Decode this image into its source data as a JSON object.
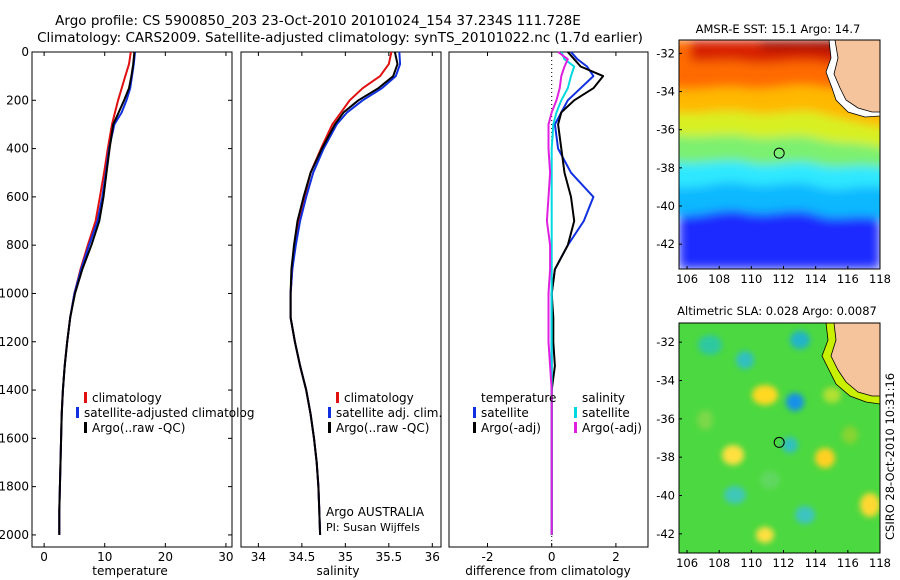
{
  "title": {
    "line1": "Argo profile: CS 5900850_203 23-Oct-2010 20101024_154 37.234S 111.728E",
    "line2": "Climatology: CARS2009. Satellite-adjusted climatology: synTS_20101022.nc (1.7d earlier)"
  },
  "credit": "CSIRO 28-Oct-2010 10:31:16",
  "colors": {
    "clim": "#e01010",
    "sat": "#1030e0",
    "argo": "#000000",
    "sal_sat": "#00d8e0",
    "sal_argo": "#e020e0"
  },
  "chart_data": [
    {
      "id": "temperature",
      "type": "line",
      "xlabel": "temperature",
      "ylabel": "",
      "xlim": [
        -2,
        31
      ],
      "ylim": [
        2050,
        0
      ],
      "xticks": [
        "0",
        "10",
        "20",
        "30"
      ],
      "xtick_values": [
        0,
        10,
        20,
        30
      ],
      "yticks": [
        "0",
        "200",
        "400",
        "600",
        "800",
        "1000",
        "1200",
        "1400",
        "1600",
        "1800",
        "2000"
      ],
      "ytick_values": [
        0,
        200,
        400,
        600,
        800,
        1000,
        1200,
        1400,
        1600,
        1800,
        2000
      ],
      "legend": [
        "climatology",
        "satellite-adjusted climatolog",
        "Argo(..raw -QC)"
      ],
      "depth": [
        0,
        50,
        100,
        150,
        200,
        250,
        300,
        400,
        500,
        600,
        700,
        800,
        900,
        1000,
        1100,
        1200,
        1300,
        1400,
        1500,
        1600,
        1700,
        1800,
        1900,
        2000
      ],
      "series": [
        {
          "name": "climatology",
          "color": "clim",
          "values": [
            14.3,
            14.0,
            13.4,
            12.8,
            12.2,
            11.7,
            11.2,
            10.5,
            9.9,
            9.2,
            8.5,
            7.2,
            6.0,
            5.0,
            4.3,
            3.8,
            3.4,
            3.1,
            2.9,
            2.8,
            2.7,
            2.6,
            2.5,
            2.5
          ]
        },
        {
          "name": "satellite-adjusted climatolog",
          "color": "sat",
          "values": [
            15.0,
            14.8,
            14.5,
            14.2,
            13.6,
            12.8,
            11.6,
            10.7,
            10.2,
            9.6,
            8.8,
            7.4,
            6.1,
            5.0,
            4.3,
            3.8,
            3.4,
            3.1,
            2.9,
            2.8,
            2.7,
            2.6,
            2.5,
            2.5
          ]
        },
        {
          "name": "Argo(..raw -QC)",
          "color": "argo",
          "values": [
            14.9,
            14.7,
            14.4,
            14.0,
            13.2,
            12.3,
            11.4,
            10.8,
            10.3,
            9.8,
            9.1,
            7.8,
            6.3,
            5.1,
            4.3,
            3.8,
            3.4,
            3.1,
            2.9,
            2.8,
            2.7,
            2.6,
            2.5,
            2.5
          ]
        }
      ]
    },
    {
      "id": "salinity",
      "type": "line",
      "xlabel": "salinity",
      "ylabel": "",
      "xlim": [
        33.8,
        36.1
      ],
      "ylim": [
        2050,
        0
      ],
      "xticks": [
        "34",
        "34.5",
        "35",
        "35.5",
        "36"
      ],
      "xtick_values": [
        34,
        34.5,
        35,
        35.5,
        36
      ],
      "legend": [
        "climatology",
        "satellite adj. clim.",
        "Argo(..raw -QC)"
      ],
      "annotation": [
        "Argo AUSTRALIA",
        "PI: Susan Wijffels"
      ],
      "depth": [
        0,
        50,
        100,
        150,
        200,
        250,
        300,
        400,
        500,
        600,
        700,
        800,
        900,
        1000,
        1100,
        1200,
        1300,
        1400,
        1500,
        1600,
        1700,
        1800,
        1900,
        2000
      ],
      "series": [
        {
          "name": "climatology",
          "color": "clim",
          "values": [
            35.53,
            35.5,
            35.4,
            35.2,
            35.05,
            34.95,
            34.85,
            34.72,
            34.6,
            34.53,
            34.47,
            34.42,
            34.39,
            34.37,
            34.37,
            34.42,
            34.48,
            34.55,
            34.6,
            34.64,
            34.67,
            34.69,
            34.7,
            34.71
          ]
        },
        {
          "name": "satellite adj. clim.",
          "color": "sat",
          "values": [
            35.62,
            35.63,
            35.58,
            35.42,
            35.2,
            35.02,
            34.9,
            34.75,
            34.63,
            34.55,
            34.48,
            34.43,
            34.39,
            34.37,
            34.37,
            34.42,
            34.48,
            34.55,
            34.6,
            34.64,
            34.67,
            34.69,
            34.7,
            34.71
          ]
        },
        {
          "name": "Argo(..raw -QC)",
          "color": "argo",
          "values": [
            35.57,
            35.6,
            35.55,
            35.38,
            35.15,
            34.98,
            34.88,
            34.73,
            34.6,
            34.52,
            34.45,
            34.41,
            34.38,
            34.37,
            34.37,
            34.42,
            34.48,
            34.55,
            34.6,
            34.64,
            34.67,
            34.69,
            34.7,
            34.71
          ]
        }
      ]
    },
    {
      "id": "difference",
      "type": "line",
      "xlabel": "difference from climatology",
      "ylabel": "",
      "xlim": [
        -3.2,
        3.0
      ],
      "ylim": [
        2050,
        0
      ],
      "xticks": [
        "-2",
        "0",
        "2"
      ],
      "xtick_values": [
        -2,
        0,
        2
      ],
      "legend_left_title": "temperature",
      "legend_left": [
        "satellite",
        "Argo(-adj)"
      ],
      "legend_right_title": "salinity",
      "legend_right": [
        "satellite",
        "Argo(-adj)"
      ],
      "depth": [
        0,
        30,
        60,
        100,
        150,
        200,
        250,
        300,
        400,
        500,
        600,
        700,
        800,
        900,
        1000,
        1100,
        1200,
        1300,
        1400,
        1500,
        1600,
        1700,
        1800,
        1900,
        2000
      ],
      "series": [
        {
          "name": "temperature satellite",
          "color": "sat",
          "values": [
            0.6,
            0.8,
            1.1,
            1.3,
            0.9,
            0.5,
            0.3,
            0.1,
            0.2,
            0.6,
            1.3,
            1.0,
            0.5,
            0.1,
            0.0,
            0.0,
            0.0,
            0.0,
            0.0,
            0.0,
            0.0,
            0.0,
            0.0,
            0.0,
            0.0
          ]
        },
        {
          "name": "temperature Argo(-adj)",
          "color": "argo",
          "values": [
            0.5,
            0.7,
            0.9,
            1.6,
            1.3,
            0.7,
            0.3,
            0.2,
            0.3,
            0.4,
            0.6,
            0.7,
            0.5,
            0.1,
            0.0,
            0.05,
            0.05,
            0.1,
            0.0,
            0.0,
            0.0,
            0.0,
            0.0,
            0.0,
            0.0
          ]
        },
        {
          "name": "salinity satellite",
          "color": "sal_sat",
          "values": [
            0.3,
            0.4,
            0.7,
            0.6,
            0.5,
            0.3,
            0.15,
            0.05,
            0.0,
            0.0,
            0.0,
            0.0,
            0.0,
            0.0,
            0.0,
            0.0,
            0.0,
            0.0,
            0.0,
            0.0,
            0.0,
            0.0,
            0.0,
            0.0,
            0.0
          ]
        },
        {
          "name": "salinity Argo(-adj)",
          "color": "sal_argo",
          "values": [
            0.2,
            0.5,
            0.4,
            0.3,
            0.25,
            0.15,
            0.0,
            -0.1,
            -0.1,
            -0.05,
            -0.1,
            -0.15,
            -0.05,
            -0.05,
            -0.1,
            -0.1,
            -0.1,
            -0.05,
            0.0,
            0.0,
            0.0,
            0.0,
            0.0,
            0.0,
            0.0
          ]
        }
      ]
    },
    {
      "id": "sst_map",
      "type": "heatmap",
      "title": "AMSR-E SST: 15.1  Argo: 14.7",
      "xlim": [
        105.5,
        118
      ],
      "ylim": [
        -43.3,
        -31.3
      ],
      "xticks": [
        "106",
        "108",
        "110",
        "112",
        "114",
        "116",
        "118"
      ],
      "xtick_values": [
        106,
        108,
        110,
        112,
        114,
        116,
        118
      ],
      "yticks": [
        "-32",
        "-34",
        "-36",
        "-38",
        "-40",
        "-42"
      ],
      "ytick_values": [
        -32,
        -34,
        -36,
        -38,
        -40,
        -42
      ],
      "marker": {
        "lon": 111.73,
        "lat": -37.23
      }
    },
    {
      "id": "sla_map",
      "type": "heatmap",
      "title": "Altimetric SLA: 0.028  Argo: 0.0087",
      "xlim": [
        105.5,
        118
      ],
      "ylim": [
        -43.0,
        -31.0
      ],
      "xticks": [
        "106",
        "108",
        "110",
        "112",
        "114",
        "116",
        "118"
      ],
      "xtick_values": [
        106,
        108,
        110,
        112,
        114,
        116,
        118
      ],
      "yticks": [
        "-32",
        "-34",
        "-36",
        "-38",
        "-40",
        "-42"
      ],
      "ytick_values": [
        -32,
        -34,
        -36,
        -38,
        -40,
        -42
      ],
      "marker": {
        "lon": 111.73,
        "lat": -37.23
      }
    }
  ]
}
